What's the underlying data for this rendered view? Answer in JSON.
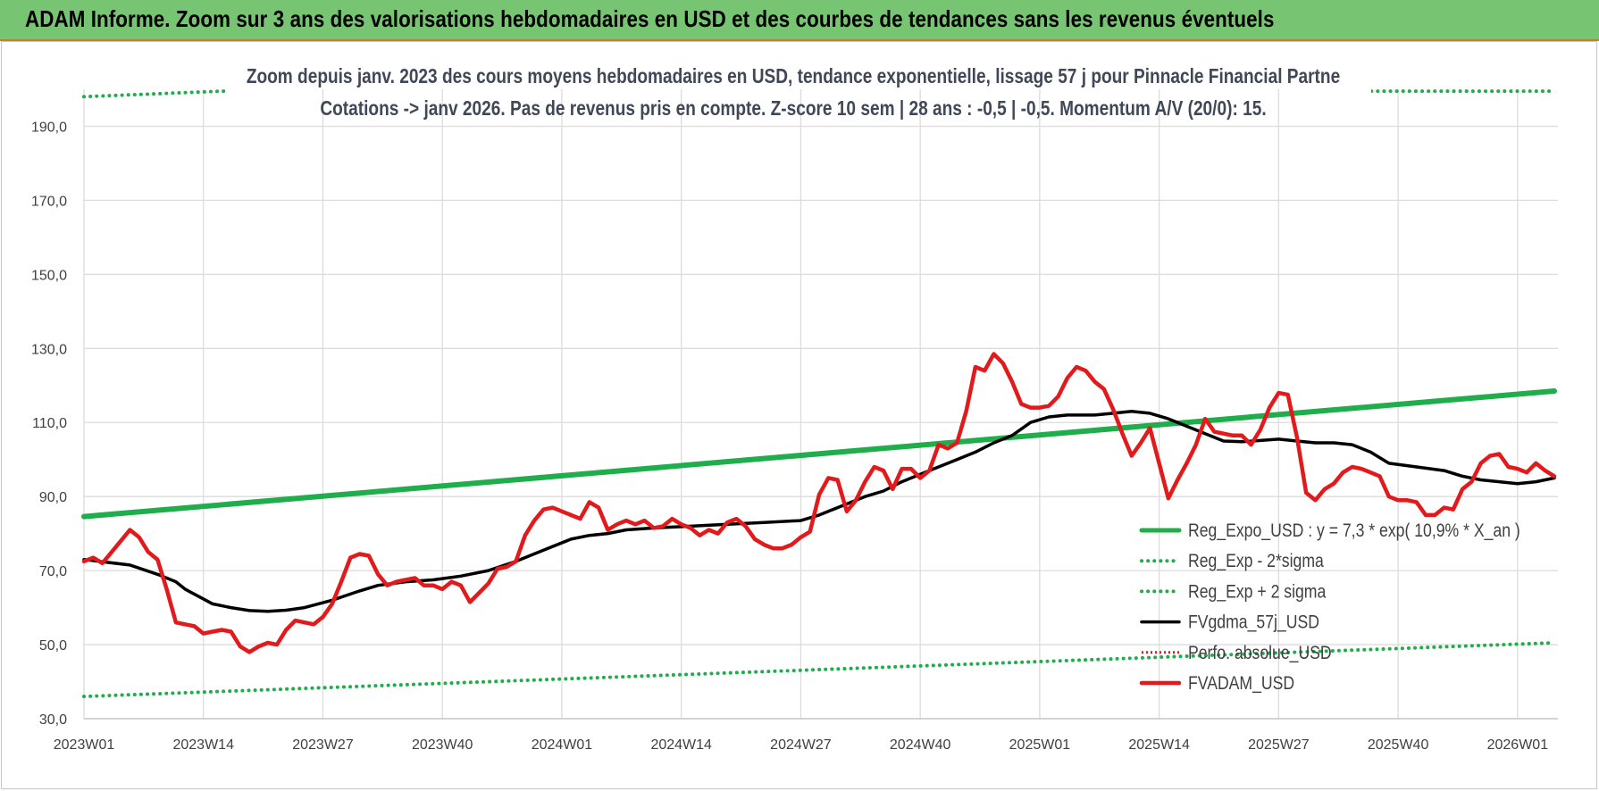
{
  "banner": {
    "title": "ADAM Informe. Zoom sur 3 ans des valorisations hebdomadaires en USD et des courbes de tendances sans les revenus éventuels"
  },
  "colors": {
    "banner_bg": "#77c472",
    "reg_expo": "#1fae4b",
    "fvgdma": "#000000",
    "perfo": "#e31a1c",
    "fvadam": "#e31a1c",
    "grid": "#dcdcdc"
  },
  "chart_data": {
    "type": "line",
    "title": "Zoom depuis janv. 2023 des cours moyens hebdomadaires en USD, tendance exponentielle, lissage 57 j pour Pinnacle Financial Partne",
    "subtitle": "Cotations -> janv 2026. Pas de revenus pris en compte. Z-score 10 sem | 28 ans : -0,5 | -0,5. Momentum A/V (20/0): 15.",
    "xlabel": "",
    "ylabel": "",
    "ylim": [
      30,
      200
    ],
    "yticks": [
      "30,0",
      "50,0",
      "70,0",
      "90,0",
      "110,0",
      "130,0",
      "150,0",
      "170,0",
      "190,0"
    ],
    "x_tick_labels": [
      "2023W01",
      "2023W14",
      "2023W27",
      "2023W40",
      "2024W01",
      "2024W14",
      "2024W27",
      "2024W40",
      "2025W01",
      "2025W14",
      "2025W27",
      "2025W40",
      "2026W01"
    ],
    "x_weeks": {
      "first": "2023W01",
      "last": "2026W05",
      "count": 161
    },
    "grid": true,
    "legend_position": "bottom-right",
    "series": [
      {
        "name": "Reg_Expo_USD : y = 7,3 * exp( 10,9% *  X_an )",
        "style": "solid-thick",
        "points": [
          [
            0,
            84.6
          ],
          [
            160,
            118.5
          ]
        ]
      },
      {
        "name": "Reg_Exp - 2*sigma",
        "style": "dotted",
        "points": [
          [
            0,
            36.0
          ],
          [
            160,
            50.5
          ]
        ]
      },
      {
        "name": "Reg_Exp + 2 sigma",
        "style": "dotted",
        "points": [
          [
            0,
            198.0
          ],
          [
            15,
            199.5
          ],
          [
            160,
            199.5
          ]
        ]
      },
      {
        "name": "FVgdma_57j_USD",
        "style": "solid",
        "points": [
          [
            0,
            73
          ],
          [
            5,
            71.5
          ],
          [
            8,
            69
          ],
          [
            10,
            67
          ],
          [
            11,
            65
          ],
          [
            14,
            61
          ],
          [
            16,
            60
          ],
          [
            18,
            59.2
          ],
          [
            20,
            59
          ],
          [
            22,
            59.3
          ],
          [
            24,
            60
          ],
          [
            27,
            62
          ],
          [
            30,
            64.5
          ],
          [
            32,
            66
          ],
          [
            35,
            67
          ],
          [
            38,
            67.5
          ],
          [
            41,
            68.5
          ],
          [
            44,
            70
          ],
          [
            47,
            72.5
          ],
          [
            50,
            75.5
          ],
          [
            53,
            78.5
          ],
          [
            55,
            79.5
          ],
          [
            57,
            80
          ],
          [
            59,
            81
          ],
          [
            62,
            81.5
          ],
          [
            66,
            82
          ],
          [
            70,
            82.5
          ],
          [
            74,
            83
          ],
          [
            78,
            83.5
          ],
          [
            80,
            85
          ],
          [
            82,
            87
          ],
          [
            85,
            90
          ],
          [
            87,
            91.5
          ],
          [
            89,
            94
          ],
          [
            92,
            97
          ],
          [
            95,
            100
          ],
          [
            97,
            102
          ],
          [
            99,
            104.5
          ],
          [
            101,
            106.5
          ],
          [
            103,
            110
          ],
          [
            105,
            111.5
          ],
          [
            107,
            112
          ],
          [
            110,
            112
          ],
          [
            112,
            112.5
          ],
          [
            114,
            113
          ],
          [
            116,
            112.5
          ],
          [
            118,
            111
          ],
          [
            120,
            109
          ],
          [
            122,
            107
          ],
          [
            124,
            105
          ],
          [
            126,
            104.8
          ],
          [
            130,
            105.5
          ],
          [
            132,
            105
          ],
          [
            134,
            104.5
          ],
          [
            136,
            104.5
          ],
          [
            138,
            104
          ],
          [
            140,
            102
          ],
          [
            142,
            99
          ],
          [
            145,
            98
          ],
          [
            148,
            97
          ],
          [
            150,
            95.5
          ],
          [
            152,
            94.5
          ],
          [
            154,
            94
          ],
          [
            156,
            93.5
          ],
          [
            158,
            94
          ],
          [
            160,
            95
          ]
        ]
      },
      {
        "name": "Perfo. absolue_USD",
        "style": "dotted-red",
        "points": []
      },
      {
        "name": "FVADAM_USD",
        "style": "solid-thick",
        "points": [
          [
            0,
            72.5
          ],
          [
            1,
            73.5
          ],
          [
            2,
            72
          ],
          [
            3,
            75
          ],
          [
            4,
            78
          ],
          [
            5,
            81
          ],
          [
            6,
            79
          ],
          [
            7,
            75
          ],
          [
            8,
            73
          ],
          [
            9,
            65
          ],
          [
            10,
            56
          ],
          [
            11,
            55.5
          ],
          [
            12,
            55
          ],
          [
            13,
            53
          ],
          [
            14,
            53.5
          ],
          [
            15,
            54
          ],
          [
            16,
            53.5
          ],
          [
            17,
            49.5
          ],
          [
            18,
            48
          ],
          [
            19,
            49.5
          ],
          [
            20,
            50.5
          ],
          [
            21,
            50
          ],
          [
            22,
            54
          ],
          [
            23,
            56.5
          ],
          [
            24,
            56
          ],
          [
            25,
            55.5
          ],
          [
            26,
            57.5
          ],
          [
            27,
            61
          ],
          [
            28,
            67
          ],
          [
            29,
            73.5
          ],
          [
            30,
            74.5
          ],
          [
            31,
            74
          ],
          [
            32,
            69
          ],
          [
            33,
            66
          ],
          [
            34,
            67
          ],
          [
            35,
            67.5
          ],
          [
            36,
            68
          ],
          [
            37,
            66
          ],
          [
            38,
            66
          ],
          [
            39,
            65
          ],
          [
            40,
            67
          ],
          [
            41,
            66
          ],
          [
            42,
            61.5
          ],
          [
            43,
            64
          ],
          [
            44,
            66.5
          ],
          [
            45,
            70.5
          ],
          [
            46,
            71
          ],
          [
            47,
            72.5
          ],
          [
            48,
            79.5
          ],
          [
            49,
            83.5
          ],
          [
            50,
            86.5
          ],
          [
            51,
            87
          ],
          [
            52,
            86
          ],
          [
            53,
            85
          ],
          [
            54,
            84
          ],
          [
            55,
            88.5
          ],
          [
            56,
            87
          ],
          [
            57,
            81
          ],
          [
            58,
            82.5
          ],
          [
            59,
            83.5
          ],
          [
            60,
            82.5
          ],
          [
            61,
            83.5
          ],
          [
            62,
            81.5
          ],
          [
            63,
            82
          ],
          [
            64,
            84
          ],
          [
            65,
            82.5
          ],
          [
            66,
            81.5
          ],
          [
            67,
            79.5
          ],
          [
            68,
            81
          ],
          [
            69,
            80
          ],
          [
            70,
            83
          ],
          [
            71,
            84
          ],
          [
            72,
            82
          ],
          [
            73,
            78.5
          ],
          [
            74,
            77
          ],
          [
            75,
            76
          ],
          [
            76,
            76
          ],
          [
            77,
            77
          ],
          [
            78,
            79
          ],
          [
            79,
            80.5
          ],
          [
            80,
            90.5
          ],
          [
            81,
            95
          ],
          [
            82,
            94.5
          ],
          [
            83,
            86
          ],
          [
            84,
            89
          ],
          [
            85,
            94
          ],
          [
            86,
            98
          ],
          [
            87,
            97
          ],
          [
            88,
            92
          ],
          [
            89,
            97.5
          ],
          [
            90,
            97.5
          ],
          [
            91,
            95
          ],
          [
            92,
            97
          ],
          [
            93,
            104
          ],
          [
            94,
            103
          ],
          [
            95,
            104.5
          ],
          [
            96,
            113
          ],
          [
            97,
            125
          ],
          [
            98,
            124
          ],
          [
            99,
            128.5
          ],
          [
            100,
            126
          ],
          [
            101,
            121
          ],
          [
            102,
            115
          ],
          [
            103,
            114
          ],
          [
            104,
            114
          ],
          [
            105,
            114.5
          ],
          [
            106,
            117
          ],
          [
            107,
            122
          ],
          [
            108,
            125
          ],
          [
            109,
            124
          ],
          [
            110,
            121
          ],
          [
            111,
            119
          ],
          [
            112,
            113.5
          ],
          [
            113,
            107
          ],
          [
            114,
            101
          ],
          [
            115,
            104.5
          ],
          [
            116,
            108.5
          ],
          [
            117,
            99
          ],
          [
            118,
            89.5
          ],
          [
            119,
            94.5
          ],
          [
            120,
            99
          ],
          [
            121,
            104
          ],
          [
            122,
            111
          ],
          [
            123,
            107.5
          ],
          [
            124,
            107
          ],
          [
            125,
            106.5
          ],
          [
            126,
            106.5
          ],
          [
            127,
            104
          ],
          [
            128,
            108
          ],
          [
            129,
            114
          ],
          [
            130,
            118
          ],
          [
            131,
            117.5
          ],
          [
            132,
            106
          ],
          [
            133,
            91
          ],
          [
            134,
            89
          ],
          [
            135,
            92
          ],
          [
            136,
            93.5
          ],
          [
            137,
            96.5
          ],
          [
            138,
            98
          ],
          [
            139,
            97.5
          ],
          [
            140,
            96.5
          ],
          [
            141,
            95.5
          ],
          [
            142,
            90
          ],
          [
            143,
            89
          ],
          [
            144,
            89
          ],
          [
            145,
            88.5
          ],
          [
            146,
            85
          ],
          [
            147,
            85
          ],
          [
            148,
            87
          ],
          [
            149,
            86.5
          ],
          [
            150,
            92
          ],
          [
            151,
            94
          ],
          [
            152,
            99
          ],
          [
            153,
            101
          ],
          [
            154,
            101.5
          ],
          [
            155,
            98
          ],
          [
            156,
            97.5
          ],
          [
            157,
            96.5
          ],
          [
            158,
            99
          ],
          [
            159,
            97
          ],
          [
            160,
            95.5
          ]
        ]
      }
    ]
  }
}
